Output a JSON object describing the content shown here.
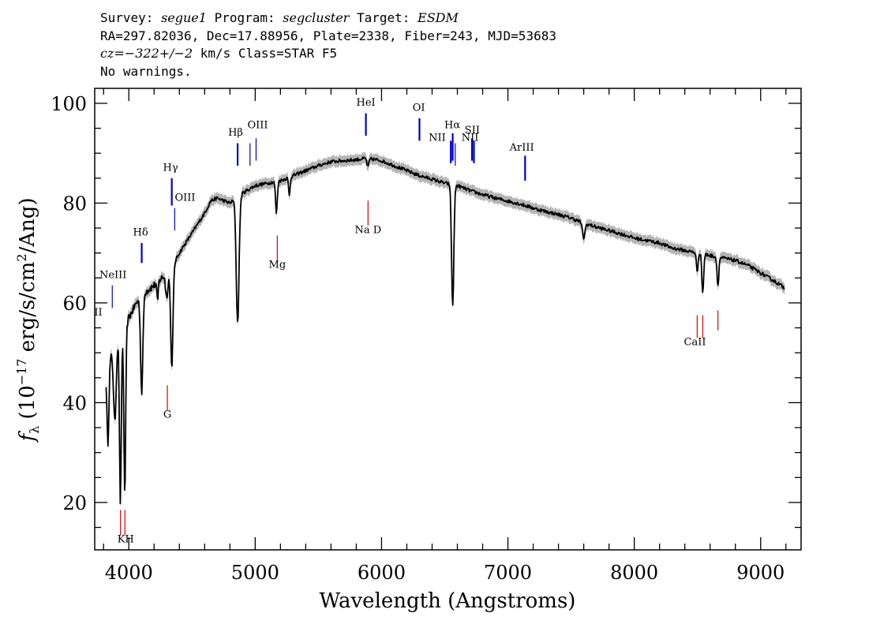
{
  "header": {
    "line1": {
      "survey_label": "Survey: ",
      "survey": "segue1",
      "program_label": " Program: ",
      "program": "segcluster",
      "target_label": " Target: ",
      "target": "ESDM"
    },
    "line2": "RA=297.82036, Dec=17.88956, Plate=2338, Fiber=243, MJD=53683",
    "line3": {
      "cz": "cz=−322+/−2",
      "rest": " km/s Class=STAR F5"
    },
    "line4": "No warnings."
  },
  "chart_data": {
    "type": "line",
    "xlabel": "Wavelength (Angstroms)",
    "ylabel_main": "f",
    "ylabel_sub": "λ",
    "ylabel_rest1": " (10",
    "ylabel_exp1": "−17",
    "ylabel_rest2": " erg/s/cm",
    "ylabel_exp2": "2",
    "ylabel_rest3": "/Ang)",
    "xlim": [
      3730,
      9320
    ],
    "ylim": [
      10.5,
      103
    ],
    "x_ticks": [
      4000,
      5000,
      6000,
      7000,
      8000,
      9000
    ],
    "x_tick_labels": [
      "4000",
      "5000",
      "6000",
      "7000",
      "8000",
      "9000"
    ],
    "y_ticks": [
      20,
      40,
      60,
      80,
      100
    ],
    "y_tick_labels": [
      "20",
      "40",
      "60",
      "80",
      "100"
    ],
    "grid": false,
    "colors": {
      "spectrum": "#000000",
      "error_band": "#b4b4b4",
      "emission": "#0000cc",
      "absorption": "#dd0000"
    },
    "continuum": [
      [
        3820,
        47
      ],
      [
        3870,
        50
      ],
      [
        3920,
        53
      ],
      [
        3960,
        54
      ],
      [
        4000,
        57
      ],
      [
        4060,
        60
      ],
      [
        4120,
        62
      ],
      [
        4200,
        63.5
      ],
      [
        4280,
        65.5
      ],
      [
        4330,
        66.5
      ],
      [
        4400,
        70
      ],
      [
        4500,
        74
      ],
      [
        4600,
        78
      ],
      [
        4650,
        80.5
      ],
      [
        4700,
        81
      ],
      [
        4800,
        80
      ],
      [
        4900,
        82
      ],
      [
        5000,
        83.5
      ],
      [
        5100,
        84
      ],
      [
        5200,
        84.5
      ],
      [
        5300,
        85.5
      ],
      [
        5400,
        86.5
      ],
      [
        5500,
        87.5
      ],
      [
        5600,
        88.3
      ],
      [
        5700,
        88.5
      ],
      [
        5800,
        88.7
      ],
      [
        5880,
        89
      ],
      [
        5950,
        88.7
      ],
      [
        6000,
        88.5
      ],
      [
        6100,
        87.5
      ],
      [
        6200,
        86.5
      ],
      [
        6300,
        85.5
      ],
      [
        6400,
        84.8
      ],
      [
        6500,
        84
      ],
      [
        6600,
        83.5
      ],
      [
        6700,
        82.5
      ],
      [
        6800,
        81.7
      ],
      [
        6900,
        81
      ],
      [
        7000,
        80.4
      ],
      [
        7100,
        79.8
      ],
      [
        7200,
        79
      ],
      [
        7300,
        78.3
      ],
      [
        7400,
        77.7
      ],
      [
        7500,
        77
      ],
      [
        7600,
        76
      ],
      [
        7700,
        75.2
      ],
      [
        7800,
        74.5
      ],
      [
        7900,
        73.8
      ],
      [
        8000,
        73
      ],
      [
        8100,
        72.5
      ],
      [
        8200,
        72
      ],
      [
        8300,
        71
      ],
      [
        8400,
        70.5
      ],
      [
        8500,
        70
      ],
      [
        8600,
        69.5
      ],
      [
        8700,
        69
      ],
      [
        8800,
        68.5
      ],
      [
        8900,
        67.5
      ],
      [
        9000,
        66
      ],
      [
        9100,
        64.5
      ],
      [
        9190,
        63
      ]
    ],
    "absorption_features": [
      [
        3834,
        32,
        8
      ],
      [
        3889,
        36,
        10
      ],
      [
        3933,
        20,
        7
      ],
      [
        3968,
        21,
        7
      ],
      [
        4102,
        42,
        9
      ],
      [
        4227,
        60,
        5
      ],
      [
        4300,
        61,
        9
      ],
      [
        4340,
        47,
        9
      ],
      [
        4861,
        56,
        11
      ],
      [
        5168,
        78,
        7
      ],
      [
        5270,
        81.5,
        6
      ],
      [
        5892,
        87.3,
        8
      ],
      [
        6563,
        59.5,
        9
      ],
      [
        7600,
        73,
        10
      ],
      [
        8498,
        66,
        6
      ],
      [
        8542,
        62,
        7
      ],
      [
        8662,
        63.5,
        7
      ]
    ],
    "emission_lines": [
      {
        "label": "OII",
        "x": 3727,
        "y0": 50,
        "y1": 56,
        "lx": 3725,
        "ly": 57.5,
        "thick": false
      },
      {
        "label": "NeIII",
        "x": 3869,
        "y0": 59,
        "y1": 63.5,
        "lx": 3875,
        "ly": 65,
        "thick": false
      },
      {
        "label": "Hδ",
        "x": 4102,
        "y0": 68,
        "y1": 72,
        "lx": 4093,
        "ly": 73.5,
        "thick": true
      },
      {
        "label": "Hγ",
        "x": 4340,
        "y0": 79.5,
        "y1": 85,
        "lx": 4330,
        "ly": 86.5,
        "thick": true
      },
      {
        "label": "OIII",
        "x": 4363,
        "y0": 74.5,
        "y1": 79,
        "lx": 4445,
        "ly": 80.5,
        "thick": false
      },
      {
        "label": "Hβ",
        "x": 4861,
        "y0": 87.5,
        "y1": 92,
        "lx": 4845,
        "ly": 93.5,
        "thick": true
      },
      {
        "label": "OIII",
        "x": 4959,
        "y0": 87.5,
        "y1": 92,
        "lx": 5020,
        "ly": 95,
        "thick": false
      },
      {
        "label": "OIII",
        "x": 5007,
        "y0": 88.5,
        "y1": 93,
        "lx": null,
        "ly": null,
        "thick": false
      },
      {
        "label": "HeI",
        "x": 5876,
        "y0": 93.5,
        "y1": 98,
        "lx": 5876,
        "ly": 99.5,
        "thick": true
      },
      {
        "label": "OI",
        "x": 6300,
        "y0": 92.5,
        "y1": 97,
        "lx": 6295,
        "ly": 98.5,
        "thick": true
      },
      {
        "label": "NII",
        "x": 6548,
        "y0": 88,
        "y1": 92.5,
        "lx": 6440,
        "ly": 92.5,
        "thick": true
      },
      {
        "label": "Hα",
        "x": 6563,
        "y0": 88.5,
        "y1": 94,
        "lx": 6560,
        "ly": 95,
        "thick": true
      },
      {
        "label": "NII",
        "x": 6583,
        "y0": 87.5,
        "y1": 92,
        "lx": null,
        "ly": null,
        "thick": false
      },
      {
        "label": "SII",
        "x": 6716,
        "y0": 88.5,
        "y1": 93,
        "lx": 6718,
        "ly": 94,
        "thick": true
      },
      {
        "label": "NII",
        "x": 6731,
        "y0": 88,
        "y1": 92.5,
        "lx": 6700,
        "ly": 92.5,
        "thick": true
      },
      {
        "label": "ArIII",
        "x": 7136,
        "y0": 84.5,
        "y1": 89.5,
        "lx": 7110,
        "ly": 90.5,
        "thick": true
      }
    ],
    "absorption_lines": [
      {
        "label": "",
        "x": 3934,
        "y0": 13.5,
        "y1": 18.5,
        "lx": null,
        "ly": null
      },
      {
        "label": "KH",
        "x": 3969,
        "y0": 13.5,
        "y1": 18.5,
        "lx": 3975,
        "ly": 12
      },
      {
        "label": "G",
        "x": 4305,
        "y0": 38.5,
        "y1": 43.5,
        "lx": 4305,
        "ly": 37
      },
      {
        "label": "Mg",
        "x": 5175,
        "y0": 68.5,
        "y1": 73.5,
        "lx": 5175,
        "ly": 67
      },
      {
        "label": "Na D",
        "x": 5893,
        "y0": 75.5,
        "y1": 80.5,
        "lx": 5893,
        "ly": 74
      },
      {
        "label": "",
        "x": 8498,
        "y0": 53,
        "y1": 57.5,
        "lx": null,
        "ly": null
      },
      {
        "label": "CaII",
        "x": 8542,
        "y0": 53,
        "y1": 57.5,
        "lx": 8480,
        "ly": 51.5
      },
      {
        "label": "",
        "x": 8662,
        "y0": 54.5,
        "y1": 58.5,
        "lx": null,
        "ly": null
      }
    ]
  }
}
